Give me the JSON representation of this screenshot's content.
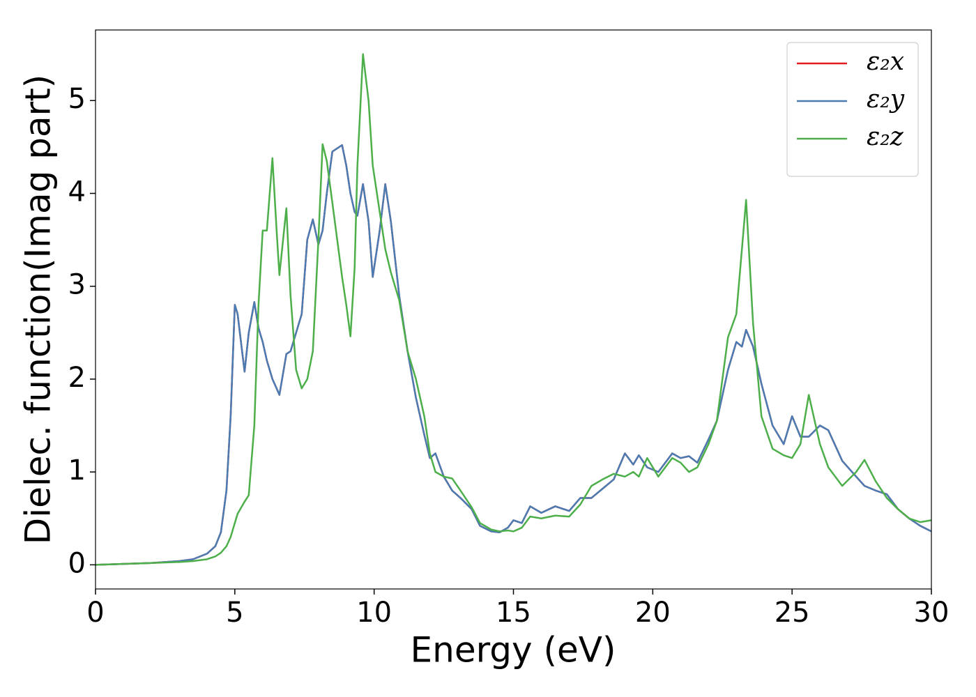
{
  "chart_data": {
    "type": "line",
    "xlabel": "Energy (eV)",
    "ylabel": "Dielec. function(Imag part)",
    "xlim": [
      0,
      30
    ],
    "ylim": [
      -0.26,
      5.76
    ],
    "xticks": [
      0,
      5,
      10,
      15,
      20,
      25,
      30
    ],
    "yticks": [
      0,
      1,
      2,
      3,
      4,
      5
    ],
    "legend": "upper right",
    "x": [
      0,
      2,
      3,
      3.5,
      4,
      4.3,
      4.5,
      4.7,
      4.85,
      5.0,
      5.1,
      5.35,
      5.5,
      5.7,
      5.85,
      6.0,
      6.15,
      6.35,
      6.5,
      6.6,
      6.85,
      7.0,
      7.2,
      7.4,
      7.6,
      7.8,
      8.0,
      8.15,
      8.3,
      8.5,
      8.85,
      9.0,
      9.15,
      9.3,
      9.4,
      9.6,
      9.8,
      9.95,
      10.2,
      10.4,
      10.6,
      10.9,
      11.2,
      11.5,
      11.8,
      12.0,
      12.2,
      12.5,
      12.8,
      13.1,
      13.5,
      13.8,
      14.2,
      14.5,
      14.8,
      15.0,
      15.3,
      15.6,
      16.0,
      16.5,
      17.0,
      17.4,
      17.8,
      18.2,
      18.6,
      19.0,
      19.3,
      19.5,
      19.8,
      20.2,
      20.7,
      21.0,
      21.3,
      21.6,
      22.0,
      22.3,
      22.7,
      23.0,
      23.2,
      23.35,
      23.6,
      23.9,
      24.3,
      24.7,
      25.0,
      25.3,
      25.6,
      26.0,
      26.3,
      26.8,
      27.3,
      27.6,
      28.0,
      28.4,
      28.8,
      29.2,
      29.6,
      30.0
    ],
    "series": [
      {
        "name": "ε₂x",
        "color": "#e41a1c",
        "values": [
          0,
          0.02,
          0.04,
          0.06,
          0.12,
          0.2,
          0.35,
          0.8,
          1.6,
          2.8,
          2.7,
          2.08,
          2.5,
          2.83,
          2.55,
          2.4,
          2.2,
          2.0,
          1.9,
          1.83,
          2.27,
          2.3,
          2.5,
          2.7,
          3.5,
          3.72,
          3.45,
          3.6,
          4.0,
          4.45,
          4.52,
          4.3,
          4.0,
          3.8,
          3.76,
          4.1,
          3.7,
          3.1,
          3.6,
          4.1,
          3.7,
          2.9,
          2.3,
          1.8,
          1.4,
          1.15,
          1.2,
          0.95,
          0.8,
          0.72,
          0.6,
          0.42,
          0.36,
          0.35,
          0.4,
          0.48,
          0.45,
          0.63,
          0.56,
          0.63,
          0.58,
          0.72,
          0.72,
          0.82,
          0.92,
          1.2,
          1.08,
          1.18,
          1.05,
          1.0,
          1.2,
          1.15,
          1.17,
          1.1,
          1.35,
          1.55,
          2.1,
          2.4,
          2.35,
          2.53,
          2.35,
          1.95,
          1.5,
          1.3,
          1.6,
          1.38,
          1.38,
          1.5,
          1.45,
          1.12,
          0.95,
          0.85,
          0.8,
          0.76,
          0.6,
          0.5,
          0.42,
          0.36
        ]
      },
      {
        "name": "ε₂y",
        "color": "#4a7cb3",
        "values": [
          0,
          0.02,
          0.04,
          0.06,
          0.12,
          0.2,
          0.35,
          0.8,
          1.6,
          2.8,
          2.7,
          2.08,
          2.5,
          2.83,
          2.55,
          2.4,
          2.2,
          2.0,
          1.9,
          1.83,
          2.27,
          2.3,
          2.5,
          2.7,
          3.5,
          3.72,
          3.45,
          3.6,
          4.0,
          4.45,
          4.52,
          4.3,
          4.0,
          3.8,
          3.76,
          4.1,
          3.7,
          3.1,
          3.6,
          4.1,
          3.7,
          2.9,
          2.3,
          1.8,
          1.4,
          1.15,
          1.2,
          0.95,
          0.8,
          0.72,
          0.6,
          0.42,
          0.36,
          0.35,
          0.4,
          0.48,
          0.45,
          0.63,
          0.56,
          0.63,
          0.58,
          0.72,
          0.72,
          0.82,
          0.92,
          1.2,
          1.08,
          1.18,
          1.05,
          1.0,
          1.2,
          1.15,
          1.17,
          1.1,
          1.35,
          1.55,
          2.1,
          2.4,
          2.35,
          2.53,
          2.35,
          1.95,
          1.5,
          1.3,
          1.6,
          1.38,
          1.38,
          1.5,
          1.45,
          1.12,
          0.95,
          0.85,
          0.8,
          0.76,
          0.6,
          0.5,
          0.42,
          0.36
        ]
      },
      {
        "name": "ε₂z",
        "color": "#4daf4a",
        "values": [
          0,
          0.02,
          0.03,
          0.04,
          0.06,
          0.09,
          0.13,
          0.2,
          0.3,
          0.45,
          0.55,
          0.68,
          0.75,
          1.5,
          2.8,
          3.6,
          3.6,
          4.38,
          3.6,
          3.12,
          3.84,
          2.9,
          2.1,
          1.9,
          2.0,
          2.3,
          3.5,
          4.53,
          4.35,
          3.9,
          3.1,
          2.8,
          2.46,
          3.2,
          4.3,
          5.5,
          5.0,
          4.3,
          3.8,
          3.4,
          3.15,
          2.85,
          2.3,
          2.0,
          1.6,
          1.2,
          1.0,
          0.95,
          0.93,
          0.8,
          0.62,
          0.45,
          0.38,
          0.36,
          0.37,
          0.36,
          0.4,
          0.52,
          0.5,
          0.53,
          0.52,
          0.65,
          0.85,
          0.92,
          0.98,
          0.95,
          1.0,
          0.95,
          1.15,
          0.95,
          1.15,
          1.1,
          1.0,
          1.05,
          1.3,
          1.55,
          2.45,
          2.7,
          3.4,
          3.93,
          2.6,
          1.6,
          1.25,
          1.18,
          1.15,
          1.3,
          1.83,
          1.3,
          1.05,
          0.85,
          1.0,
          1.13,
          0.9,
          0.72,
          0.6,
          0.5,
          0.46,
          0.48
        ]
      }
    ]
  }
}
